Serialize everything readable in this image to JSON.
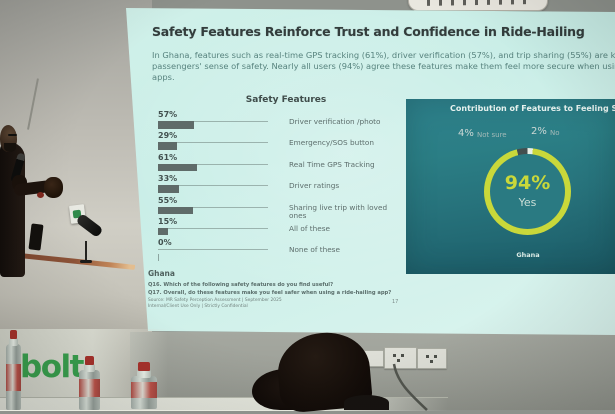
{
  "slide": {
    "title": "Safety Features Reinforce Trust and Confidence in Ride-Hailing",
    "intro_lines": [
      "In Ghana, features such as real-time GPS tracking (61%), driver verification (57%), and trip sharing (55%) are key in building",
      "passengers' sense of safety. Nearly all users (94%) agree these features make them feel more secure when using ride-hailing",
      "apps."
    ],
    "bar_section": {
      "heading": "Safety Features",
      "country_label": "Ghana"
    },
    "donut_section": {
      "heading": "Contribution of Features to Feeling Safe",
      "center_value": "94%",
      "center_label": "Yes",
      "callouts": [
        {
          "value": "4%",
          "label": "Not sure"
        },
        {
          "value": "2%",
          "label": "No"
        }
      ],
      "country_label": "Ghana"
    },
    "footnotes": {
      "q1": "Q16. Which of the following safety features do you find useful?",
      "q2": "Q17. Overall, do these features make you feel safer when using a ride-hailing app?",
      "source1": "Source: MR Safety Perception Assessment | September 2025",
      "source2": "Internal/Client Use Only | Strictly Confidential",
      "page_number": "17"
    }
  },
  "room": {
    "table_brand_logo": "bolt"
  },
  "chart_data": [
    {
      "type": "bar",
      "orientation": "horizontal",
      "title": "Safety Features",
      "categories": [
        "Driver verification /photo",
        "Emergency/SOS button",
        "Real Time GPS Tracking",
        "Driver ratings",
        "Sharing live trip with loved ones",
        "All of these",
        "None of these"
      ],
      "values": [
        57,
        29,
        61,
        33,
        55,
        15,
        0
      ],
      "unit": "%",
      "xlim": [
        0,
        100
      ],
      "country": "Ghana",
      "grid": false,
      "value_labels": "above-left"
    },
    {
      "type": "pie",
      "style": "donut",
      "title": "Contribution of Features to Feeling Safe",
      "categories": [
        "Yes",
        "Not sure",
        "No"
      ],
      "values": [
        94,
        4,
        2
      ],
      "unit": "%",
      "country": "Ghana",
      "center_text": "94% Yes",
      "legend_position": "top-callouts"
    }
  ],
  "colors": {
    "slide_bg": "#cdeee7",
    "panel_teal": "#2a7e84",
    "donut_ring": "#c9d83a",
    "donut_seg_not_sure": "#434f4f",
    "donut_seg_no": "#e9efe8",
    "bar_fill": "#5f6b69",
    "bolt_green": "#3aa34f",
    "title_text": "#333d3c"
  }
}
